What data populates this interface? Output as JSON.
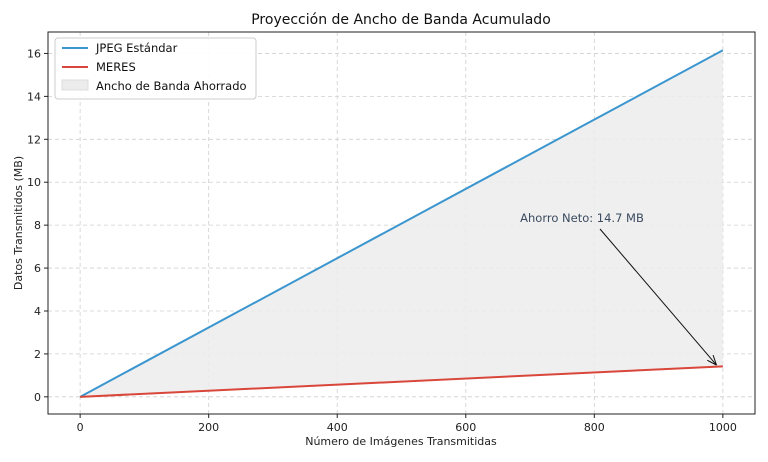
{
  "chart_data": {
    "type": "line",
    "title": "Proyección de Ancho de Banda Acumulado",
    "xlabel": "Número de Imágenes Transmitidas",
    "ylabel": "Datos Transmitidos (MB)",
    "xlim": [
      -50,
      1050
    ],
    "ylim": [
      -0.8,
      17.0
    ],
    "x_ticks": [
      0,
      200,
      400,
      600,
      800,
      1000
    ],
    "y_ticks": [
      0,
      2,
      4,
      6,
      8,
      10,
      12,
      14,
      16
    ],
    "grid": true,
    "legend_position": "top-left",
    "series": [
      {
        "name": "JPEG Estándar",
        "color": "#3b96cf",
        "x": [
          0,
          1000
        ],
        "y": [
          0,
          16.15
        ]
      },
      {
        "name": "MERES",
        "color": "#d9463a",
        "x": [
          0,
          1000
        ],
        "y": [
          0,
          1.42
        ]
      }
    ],
    "fill": {
      "name": "Ancho de Banda Ahorrado",
      "color": "#ececec"
    },
    "annotation": {
      "text": "Ahorro Neto: 14.7 MB",
      "point": [
        1000,
        1.42
      ],
      "text_at": [
        700,
        8.2
      ]
    }
  }
}
